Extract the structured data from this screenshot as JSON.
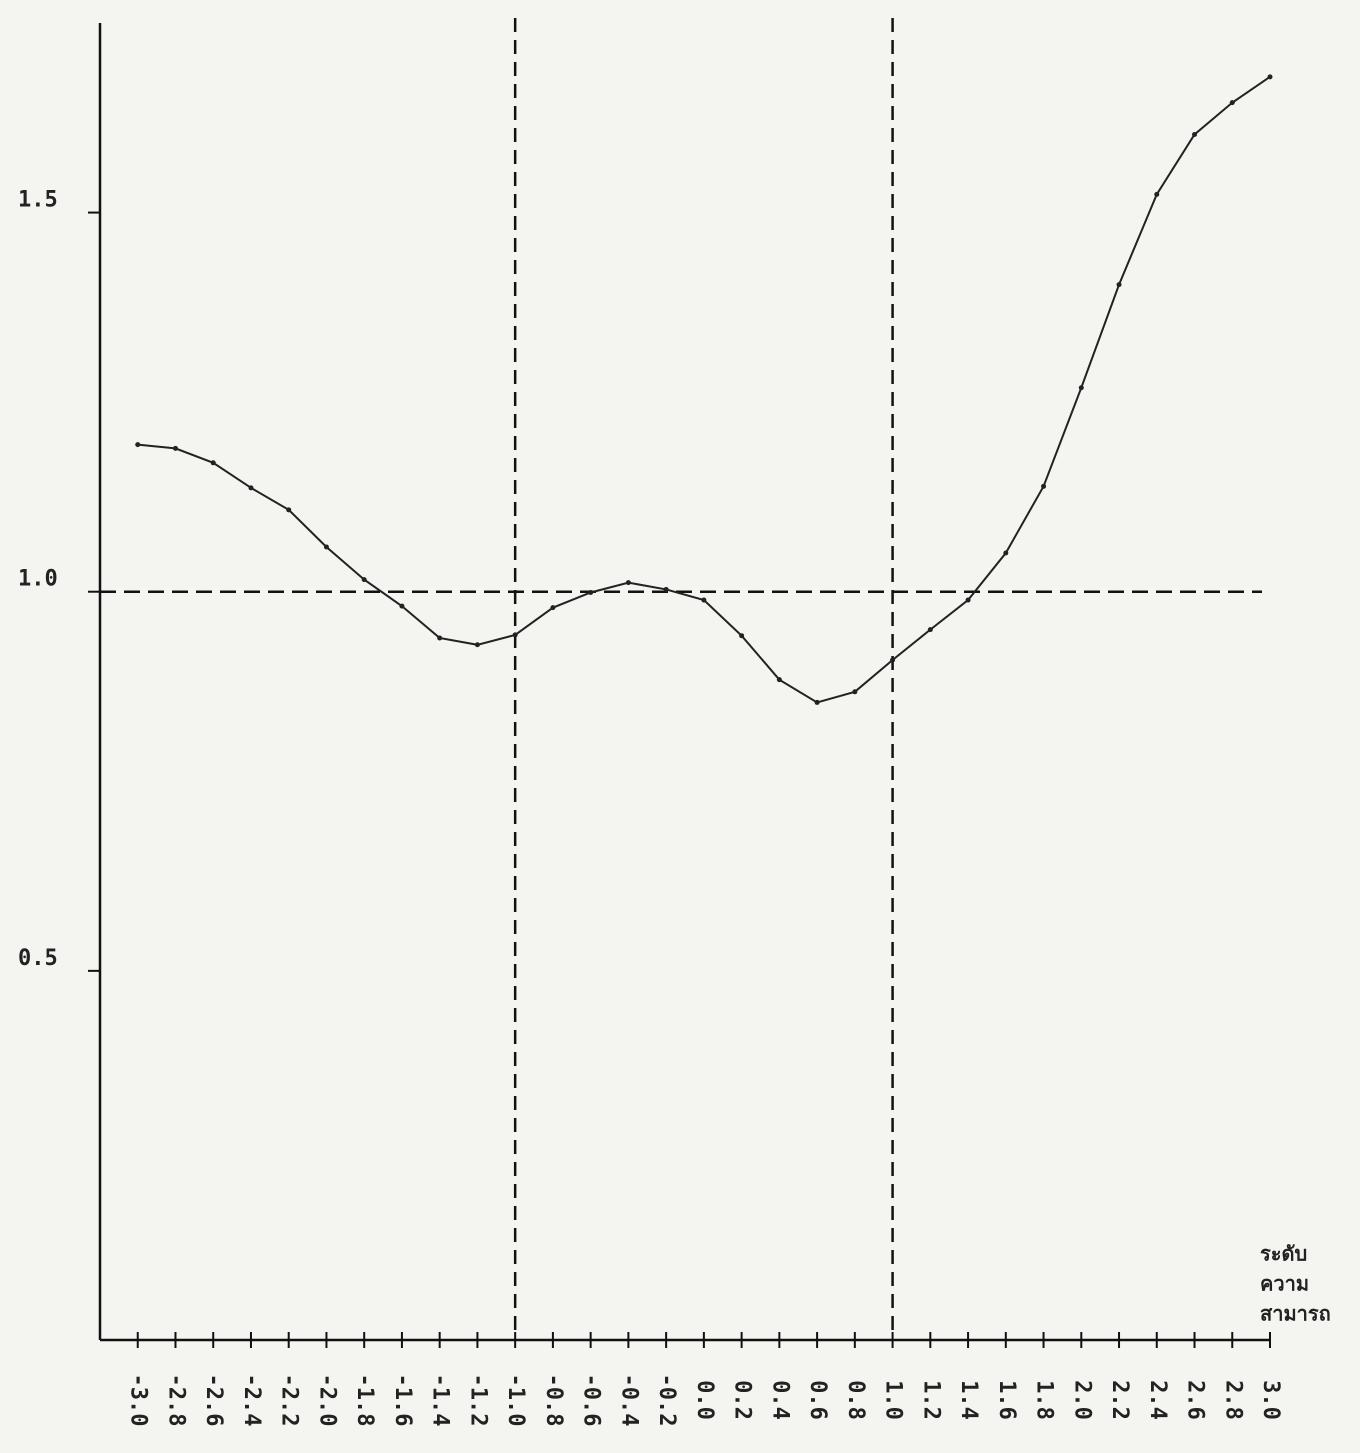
{
  "chart_data": {
    "type": "line",
    "x": [
      -3.0,
      -2.8,
      -2.6,
      -2.4,
      -2.2,
      -2.0,
      -1.8,
      -1.6,
      -1.4,
      -1.2,
      -1.0,
      -0.8,
      -0.6,
      -0.4,
      -0.2,
      0.0,
      0.2,
      0.4,
      0.6,
      0.8,
      1.0,
      1.2,
      1.4,
      1.6,
      1.8,
      2.0,
      2.2,
      2.4,
      2.6,
      2.8,
      3.0
    ],
    "values": [
      1.194,
      1.189,
      1.17,
      1.137,
      1.108,
      1.059,
      1.016,
      0.981,
      0.939,
      0.93,
      0.943,
      0.979,
      0.999,
      1.012,
      1.003,
      0.989,
      0.942,
      0.884,
      0.854,
      0.868,
      0.91,
      0.95,
      0.989,
      1.051,
      1.139,
      1.269,
      1.405,
      1.524,
      1.603,
      1.645,
      1.679
    ],
    "color": "#222222",
    "xlabel": [
      "ระดับ",
      "ความ",
      "สามารถ"
    ],
    "xlim": [
      -3.2,
      3.0
    ],
    "ylim": [
      0,
      1.75
    ],
    "xticks": [
      {
        "value": -3.0,
        "label": "-3.0"
      },
      {
        "value": -2.8,
        "label": "-2.8"
      },
      {
        "value": -2.6,
        "label": "-2.6"
      },
      {
        "value": -2.4,
        "label": "-2.4"
      },
      {
        "value": -2.2,
        "label": "-2.2"
      },
      {
        "value": -2.0,
        "label": "-2.0"
      },
      {
        "value": -1.8,
        "label": "-1.8"
      },
      {
        "value": -1.6,
        "label": "-1.6"
      },
      {
        "value": -1.4,
        "label": "-1.4"
      },
      {
        "value": -1.2,
        "label": "-1.2"
      },
      {
        "value": -1.0,
        "label": "-1.0"
      },
      {
        "value": -0.8,
        "label": "-0.8"
      },
      {
        "value": -0.6,
        "label": "-0.6"
      },
      {
        "value": -0.4,
        "label": "-0.4"
      },
      {
        "value": -0.2,
        "label": "-0.2"
      },
      {
        "value": 0.0,
        "label": "0.0"
      },
      {
        "value": 0.2,
        "label": "0.2"
      },
      {
        "value": 0.4,
        "label": "0.4"
      },
      {
        "value": 0.6,
        "label": "0.6"
      },
      {
        "value": 0.8,
        "label": "0.8"
      },
      {
        "value": 1.0,
        "label": "1.0"
      },
      {
        "value": 1.2,
        "label": "1.2"
      },
      {
        "value": 1.4,
        "label": "1.4"
      },
      {
        "value": 1.6,
        "label": "1.6"
      },
      {
        "value": 1.8,
        "label": "1.8"
      },
      {
        "value": 2.0,
        "label": "2.0"
      },
      {
        "value": 2.2,
        "label": "2.2"
      },
      {
        "value": 2.4,
        "label": "2.4"
      },
      {
        "value": 2.6,
        "label": "2.6"
      },
      {
        "value": 2.8,
        "label": "2.8"
      },
      {
        "value": 3.0,
        "label": "3.0"
      }
    ],
    "yticks": [
      0.5,
      {
        "value": 1,
        "label": "1.0"
      },
      1.5
    ],
    "vlines": [
      -1.0,
      1.0
    ],
    "hlines": [
      1.0
    ],
    "grid": false
  }
}
